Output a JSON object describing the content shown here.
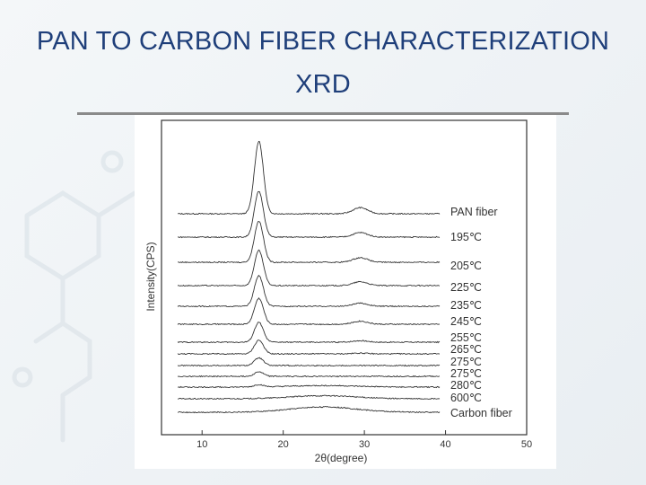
{
  "slide": {
    "title_line1": "PAN TO CARBON FIBER CHARACTERIZATION",
    "title_line2": "XRD"
  },
  "chart_data": {
    "type": "line",
    "xlabel": "2θ(degree)",
    "ylabel": "Intensity(CPS)",
    "xlim": [
      5,
      50
    ],
    "xticks": [
      10,
      20,
      30,
      40,
      50
    ],
    "grid": false,
    "legend": "labels-at-right-end-of-each-curve",
    "series": [
      {
        "name": "PAN fiber",
        "peak_2theta": 17,
        "peak_height": 95,
        "secondary_2theta": 29.5,
        "secondary_height": 8
      },
      {
        "name": "195℃",
        "peak_2theta": 17,
        "peak_height": 60,
        "secondary_2theta": 29.5,
        "secondary_height": 6
      },
      {
        "name": "205℃",
        "peak_2theta": 17,
        "peak_height": 54,
        "secondary_2theta": 29.5,
        "secondary_height": 6
      },
      {
        "name": "225℃",
        "peak_2theta": 17,
        "peak_height": 46,
        "secondary_2theta": 29.5,
        "secondary_height": 5
      },
      {
        "name": "235℃",
        "peak_2theta": 17,
        "peak_height": 40,
        "secondary_2theta": 29.5,
        "secondary_height": 4
      },
      {
        "name": "245℃",
        "peak_2theta": 17,
        "peak_height": 34,
        "secondary_2theta": 29.5,
        "secondary_height": 4
      },
      {
        "name": "255℃",
        "peak_2theta": 17,
        "peak_height": 26,
        "secondary_2theta": 29.5,
        "secondary_height": 2
      },
      {
        "name": "265℃",
        "peak_2theta": 17,
        "peak_height": 18,
        "secondary_2theta": 29.5,
        "secondary_height": 1
      },
      {
        "name": "275℃",
        "peak_2theta": 17,
        "peak_height": 10,
        "secondary_2theta": 29.5,
        "secondary_height": 0
      },
      {
        "name": "275℃",
        "peak_2theta": 17,
        "peak_height": 6,
        "secondary_2theta": 29.5,
        "secondary_height": 0
      },
      {
        "name": "280℃",
        "peak_2theta": 17,
        "peak_height": 3,
        "secondary_2theta": 25,
        "secondary_height": 2
      },
      {
        "name": "600℃",
        "peak_2theta": 17,
        "peak_height": 0,
        "secondary_2theta": 25,
        "secondary_height": 4
      },
      {
        "name": "Carbon fiber",
        "peak_2theta": 17,
        "peak_height": 0,
        "secondary_2theta": 25,
        "secondary_height": 7
      }
    ]
  }
}
